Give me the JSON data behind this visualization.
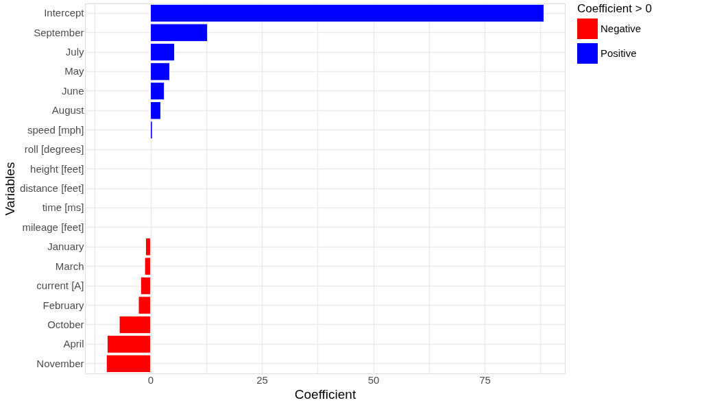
{
  "chart_data": {
    "type": "bar",
    "orientation": "horizontal",
    "xlabel": "Coefficient",
    "ylabel": "Variables",
    "legend_title": "Coefficient > 0",
    "legend": "right",
    "grid": true,
    "categories": [
      "Intercept",
      "September",
      "July",
      "May",
      "June",
      "August",
      "speed [mph]",
      "roll [degrees]",
      "height [feet]",
      "distance [feet]",
      "time [ms]",
      "mileage [feet]",
      "January",
      "March",
      "current [A]",
      "February",
      "October",
      "April",
      "November"
    ],
    "series": [
      {
        "name": "Negative",
        "color": "#ff0000",
        "values": [
          null,
          null,
          null,
          null,
          null,
          null,
          null,
          null,
          null,
          null,
          null,
          null,
          -1.1,
          -1.3,
          -2.2,
          -2.7,
          -7.0,
          -9.7,
          -9.9
        ]
      },
      {
        "name": "Positive",
        "color": "#0000ff",
        "values": [
          88.3,
          12.8,
          5.4,
          4.3,
          3.1,
          2.3,
          0.4,
          null,
          null,
          null,
          null,
          null,
          null,
          null,
          null,
          null,
          null,
          null,
          null
        ]
      }
    ],
    "xlim": [
      -14.7,
      93
    ],
    "xticks": [
      {
        "value": -12.5,
        "label": null
      },
      0,
      {
        "value": 12.5,
        "label": null
      },
      25,
      {
        "value": 37.5,
        "label": null
      },
      50,
      {
        "value": 62.5,
        "label": null
      },
      75,
      {
        "value": 87.5,
        "label": null
      }
    ]
  }
}
